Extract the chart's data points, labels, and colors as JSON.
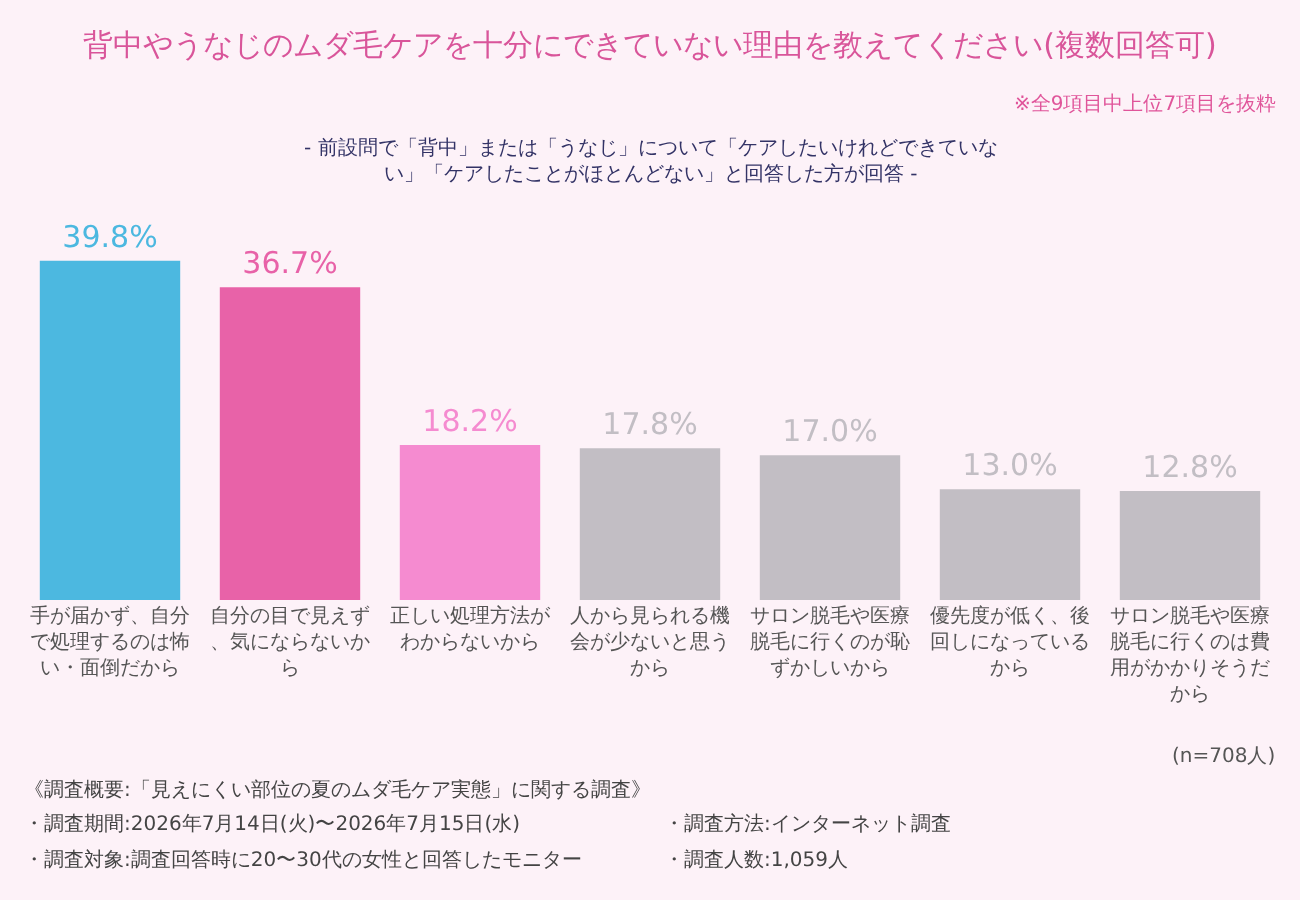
{
  "chart_data": {
    "type": "bar",
    "title": "背中やうなじのムダ毛ケアを十分にできていない理由を教えてください(複数回答可)",
    "subtitle": "- 前設問で「背中」または「うなじ」について「ケアしたいけれどできていない」「ケアしたことがほとんどない」と回答した方が回答 -",
    "categories": [
      "手が届かず、自分で処理するのは怖い・面倒だから",
      "自分の目で見えず、気にならないから",
      "正しい処理方法がわからないから",
      "人から見られる機会が少ないと思うから",
      "サロン脱毛や医療脱毛に行くのが恥ずかしいから",
      "優先度が低く、後回しになっているから",
      "サロン脱毛や医療脱毛に行くのは費用がかかりそうだから"
    ],
    "values": [
      39.8,
      36.7,
      18.2,
      17.8,
      17.0,
      13.0,
      12.8
    ],
    "colors": [
      "#4cb8e0",
      "#e862a8",
      "#f58bd0",
      "#c2bec4",
      "#c2bec4",
      "#c2bec4",
      "#c2bec4"
    ],
    "value_labels": [
      "39.8%",
      "36.7%",
      "18.2%",
      "17.8%",
      "17.0%",
      "13.0%",
      "12.8%"
    ],
    "annotations": [
      "※全9項目中上位7項目を抜粋",
      "(n=708人)",
      "《調査概要:「見えにくい部位の夏のムダ毛ケア実態」に関する調査》",
      "・調査期間:2026年7月14日(火)〜2026年7月15日(水)",
      "・調査方法:インターネット調査",
      "・調査対象:調査回答時に20〜30代の女性と回答したモニター",
      "・調査人数:1,059人"
    ],
    "grid": false,
    "legend": false
  }
}
